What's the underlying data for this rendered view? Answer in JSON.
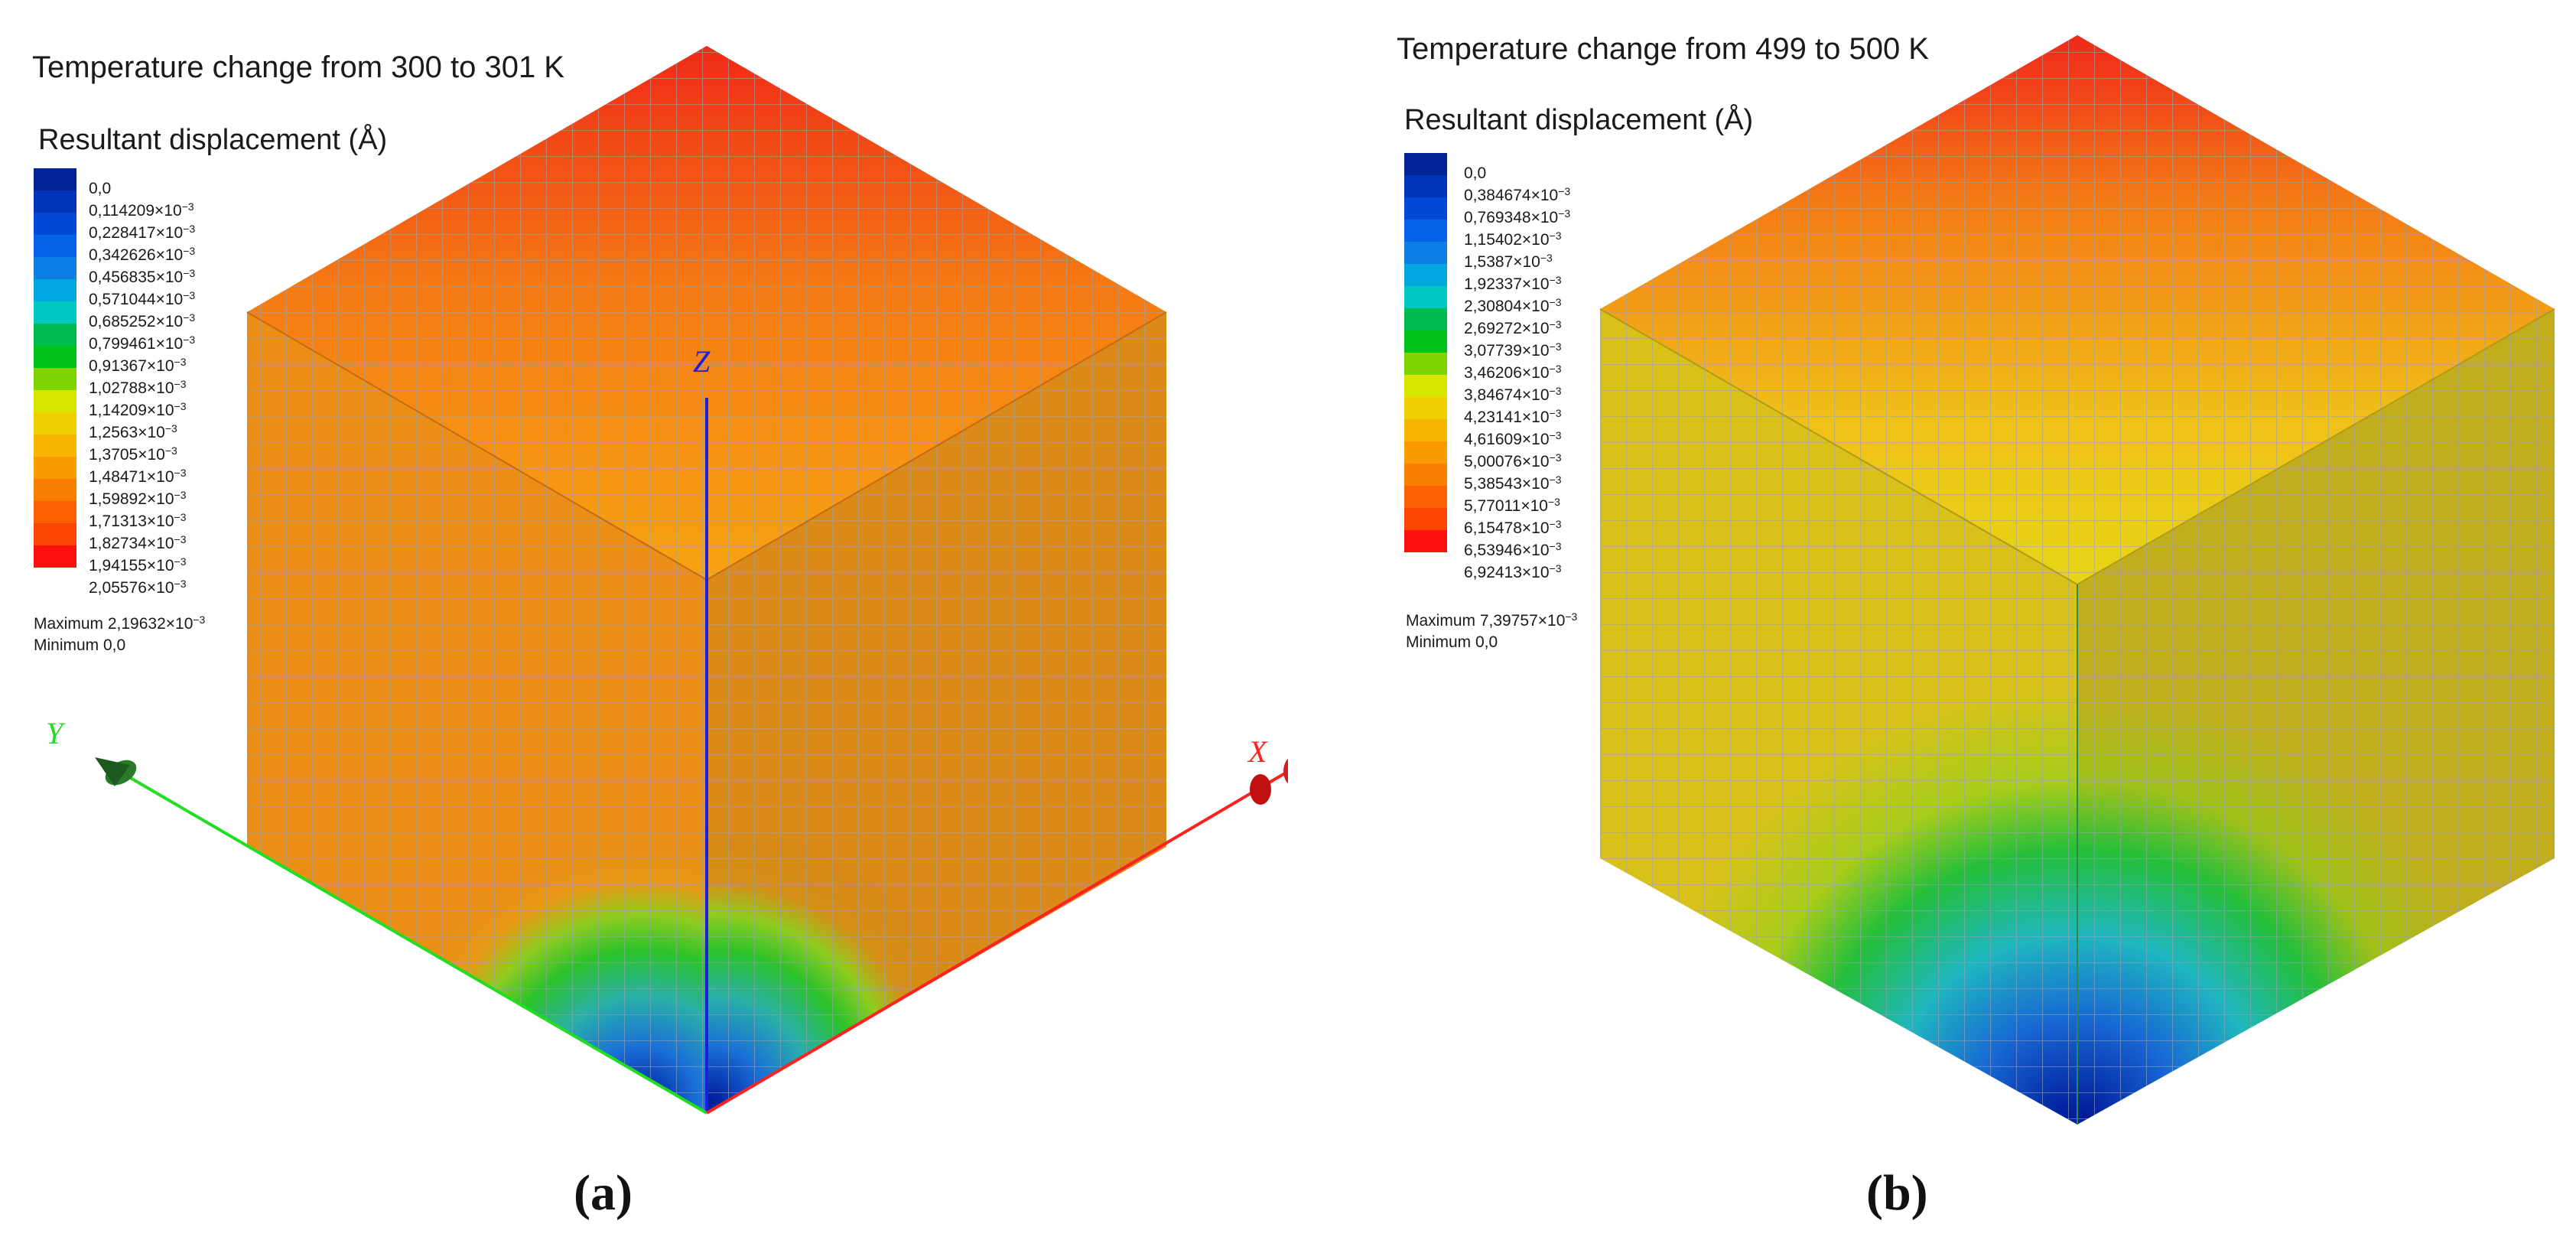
{
  "panels": [
    {
      "caption": "(a)",
      "title": "Temperature change from 300 to 301 K",
      "legend": {
        "title": "Resultant displacement (Å)",
        "colors": [
          "#002395",
          "#0034b8",
          "#0049d6",
          "#0563e8",
          "#0b7fe4",
          "#00a6e0",
          "#00c8c0",
          "#00bd52",
          "#00c21a",
          "#7cd400",
          "#d9e600",
          "#f2cf00",
          "#f7b400",
          "#f99a00",
          "#fa7e00",
          "#fb6100",
          "#fc4500",
          "#ff1010"
        ],
        "labels": [
          {
            "value": "0,0",
            "exp": ""
          },
          {
            "value": "0,114209×10",
            "exp": "−3"
          },
          {
            "value": "0,228417×10",
            "exp": "−3"
          },
          {
            "value": "0,342626×10",
            "exp": "−3"
          },
          {
            "value": "0,456835×10",
            "exp": "−3"
          },
          {
            "value": "0,571044×10",
            "exp": "−3"
          },
          {
            "value": "0,685252×10",
            "exp": "−3"
          },
          {
            "value": "0,799461×10",
            "exp": "−3"
          },
          {
            "value": "0,91367×10",
            "exp": "−3"
          },
          {
            "value": "1,02788×10",
            "exp": "−3"
          },
          {
            "value": "1,14209×10",
            "exp": "−3"
          },
          {
            "value": "1,2563×10",
            "exp": "−3"
          },
          {
            "value": "1,3705×10",
            "exp": "−3"
          },
          {
            "value": "1,48471×10",
            "exp": "−3"
          },
          {
            "value": "1,59892×10",
            "exp": "−3"
          },
          {
            "value": "1,71313×10",
            "exp": "−3"
          },
          {
            "value": "1,82734×10",
            "exp": "−3"
          },
          {
            "value": "1,94155×10",
            "exp": "−3"
          },
          {
            "value": "2,05576×10",
            "exp": "−3"
          }
        ],
        "maximum": {
          "label": "Maximum 2,19632×10",
          "exp": "−3"
        },
        "minimum": {
          "label": "Minimum 0,0"
        }
      },
      "axes": [
        {
          "name": "X",
          "color": "#ff2020"
        },
        {
          "name": "Y",
          "color": "#22dd22"
        },
        {
          "name": "Z",
          "color": "#1e1edd"
        }
      ],
      "faces": {
        "top": [
          "#f04018",
          "#f57f14",
          "#f6a310"
        ],
        "side_base": "#e68a16"
      }
    },
    {
      "caption": "(b)",
      "title": "Temperature change from 499 to 500 K",
      "legend": {
        "title": "Resultant displacement (Å)",
        "colors": [
          "#002395",
          "#0034b8",
          "#0049d6",
          "#0563e8",
          "#0b7fe4",
          "#00a6e0",
          "#00c8c0",
          "#00bd52",
          "#00c21a",
          "#7cd400",
          "#d9e600",
          "#f2cf00",
          "#f7b400",
          "#f99a00",
          "#fa7e00",
          "#fb6100",
          "#fc4500",
          "#ff1010"
        ],
        "labels": [
          {
            "value": "0,0",
            "exp": ""
          },
          {
            "value": "0,384674×10",
            "exp": "−3"
          },
          {
            "value": "0,769348×10",
            "exp": "−3"
          },
          {
            "value": "1,15402×10",
            "exp": "−3"
          },
          {
            "value": "1,5387×10",
            "exp": "−3"
          },
          {
            "value": "1,92337×10",
            "exp": "−3"
          },
          {
            "value": "2,30804×10",
            "exp": "−3"
          },
          {
            "value": "2,69272×10",
            "exp": "−3"
          },
          {
            "value": "3,07739×10",
            "exp": "−3"
          },
          {
            "value": "3,46206×10",
            "exp": "−3"
          },
          {
            "value": "3,84674×10",
            "exp": "−3"
          },
          {
            "value": "4,23141×10",
            "exp": "−3"
          },
          {
            "value": "4,61609×10",
            "exp": "−3"
          },
          {
            "value": "5,00076×10",
            "exp": "−3"
          },
          {
            "value": "5,38543×10",
            "exp": "−3"
          },
          {
            "value": "5,77011×10",
            "exp": "−3"
          },
          {
            "value": "6,15478×10",
            "exp": "−3"
          },
          {
            "value": "6,53946×10",
            "exp": "−3"
          },
          {
            "value": "6,92413×10",
            "exp": "−3"
          }
        ],
        "maximum": {
          "label": "Maximum 7,39757×10",
          "exp": "−3"
        },
        "minimum": {
          "label": "Minimum 0,0"
        }
      },
      "axes": [],
      "faces": {
        "top": [
          "#f03a18",
          "#f48a16",
          "#e8cf18"
        ],
        "side_base": "#c8b21c"
      }
    }
  ]
}
